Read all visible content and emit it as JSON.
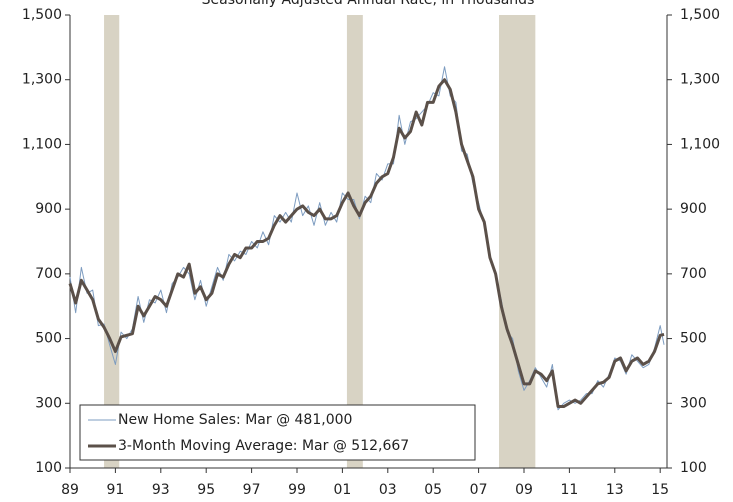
{
  "chart_data": {
    "type": "line",
    "subtitle": "Seasonally Adjusted Annual Rate, in Thousands",
    "x": [
      1989,
      1989.25,
      1989.5,
      1989.75,
      1990,
      1990.25,
      1990.5,
      1990.75,
      1991,
      1991.25,
      1991.5,
      1991.75,
      1992,
      1992.25,
      1992.5,
      1992.75,
      1993,
      1993.25,
      1993.5,
      1993.75,
      1994,
      1994.25,
      1994.5,
      1994.75,
      1995,
      1995.25,
      1995.5,
      1995.75,
      1996,
      1996.25,
      1996.5,
      1996.75,
      1997,
      1997.25,
      1997.5,
      1997.75,
      1998,
      1998.25,
      1998.5,
      1998.75,
      1999,
      1999.25,
      1999.5,
      1999.75,
      2000,
      2000.25,
      2000.5,
      2000.75,
      2001,
      2001.25,
      2001.5,
      2001.75,
      2002,
      2002.25,
      2002.5,
      2002.75,
      2003,
      2003.25,
      2003.5,
      2003.75,
      2004,
      2004.25,
      2004.5,
      2004.75,
      2005,
      2005.25,
      2005.5,
      2005.75,
      2006,
      2006.25,
      2006.5,
      2006.75,
      2007,
      2007.25,
      2007.5,
      2007.75,
      2008,
      2008.25,
      2008.5,
      2008.75,
      2009,
      2009.25,
      2009.5,
      2009.75,
      2010,
      2010.25,
      2010.5,
      2010.75,
      2011,
      2011.25,
      2011.5,
      2011.75,
      2012,
      2012.25,
      2012.5,
      2012.75,
      2013,
      2013.25,
      2013.5,
      2013.75,
      2014,
      2014.25,
      2014.5,
      2014.75,
      2015,
      2015.17
    ],
    "series": [
      {
        "name": "New Home Sales: Mar @ 481,000",
        "color": "#7d9cc0",
        "width": 1,
        "values": [
          690,
          580,
          720,
          640,
          650,
          540,
          545,
          480,
          420,
          520,
          500,
          530,
          630,
          550,
          620,
          610,
          650,
          580,
          670,
          690,
          720,
          700,
          620,
          680,
          600,
          660,
          720,
          680,
          760,
          740,
          770,
          760,
          800,
          780,
          830,
          790,
          880,
          860,
          890,
          860,
          950,
          880,
          910,
          850,
          920,
          850,
          890,
          860,
          950,
          930,
          930,
          870,
          940,
          920,
          1010,
          990,
          1040,
          1040,
          1190,
          1100,
          1170,
          1180,
          1200,
          1220,
          1260,
          1250,
          1340,
          1250,
          1230,
          1080,
          1070,
          980,
          920,
          850,
          760,
          690,
          620,
          520,
          500,
          400,
          340,
          370,
          410,
          380,
          350,
          420,
          280,
          300,
          310,
          300,
          310,
          330,
          330,
          370,
          350,
          390,
          440,
          430,
          390,
          450,
          430,
          410,
          420,
          470,
          540,
          481
        ]
      },
      {
        "name": "3-Month Moving Average: Mar @ 512,667",
        "color": "#5b5049",
        "width": 3,
        "values": [
          670,
          610,
          680,
          650,
          620,
          560,
          535,
          500,
          460,
          505,
          510,
          515,
          600,
          570,
          600,
          630,
          620,
          600,
          650,
          700,
          690,
          730,
          640,
          660,
          620,
          640,
          700,
          690,
          730,
          760,
          750,
          780,
          780,
          800,
          800,
          810,
          850,
          880,
          860,
          880,
          900,
          910,
          890,
          880,
          900,
          870,
          870,
          880,
          920,
          950,
          910,
          880,
          920,
          940,
          980,
          1000,
          1010,
          1060,
          1150,
          1120,
          1140,
          1200,
          1160,
          1230,
          1230,
          1280,
          1300,
          1270,
          1200,
          1100,
          1050,
          1000,
          900,
          860,
          750,
          700,
          600,
          530,
          480,
          420,
          360,
          360,
          400,
          390,
          370,
          400,
          290,
          290,
          300,
          310,
          300,
          320,
          340,
          360,
          365,
          380,
          430,
          440,
          400,
          430,
          440,
          420,
          430,
          460,
          510,
          512.667
        ]
      }
    ],
    "recessions": [
      [
        1990.5,
        1991.17
      ],
      [
        2001.2,
        2001.9
      ],
      [
        2007.9,
        2009.5
      ]
    ],
    "recession_color": "#d8d3c4",
    "xlim": [
      1989,
      2015.3
    ],
    "xticks": [
      {
        "value": 1989,
        "label": "89"
      },
      {
        "value": 1991,
        "label": "91"
      },
      {
        "value": 1993,
        "label": "93"
      },
      {
        "value": 1995,
        "label": "95"
      },
      {
        "value": 1997,
        "label": "97"
      },
      {
        "value": 1999,
        "label": "99"
      },
      {
        "value": 2001,
        "label": "01"
      },
      {
        "value": 2003,
        "label": "03"
      },
      {
        "value": 2005,
        "label": "05"
      },
      {
        "value": 2007,
        "label": "07"
      },
      {
        "value": 2009,
        "label": "09"
      },
      {
        "value": 2011,
        "label": "11"
      },
      {
        "value": 2013,
        "label": "13"
      },
      {
        "value": 2015,
        "label": "15"
      }
    ],
    "ylim": [
      100,
      1500
    ],
    "yticks": [
      100,
      300,
      500,
      700,
      900,
      {
        "value": 1100,
        "label": "1,100"
      },
      {
        "value": 1300,
        "label": "1,300"
      },
      {
        "value": 1500,
        "label": "1,500"
      }
    ],
    "y2lim": [
      100,
      1500
    ],
    "y2ticks": [
      100,
      300,
      500,
      700,
      900,
      {
        "value": 1100,
        "label": "1,100"
      },
      {
        "value": 1300,
        "label": "1,300"
      },
      {
        "value": 1500,
        "label": "1,500"
      }
    ],
    "legend": "lower left"
  }
}
